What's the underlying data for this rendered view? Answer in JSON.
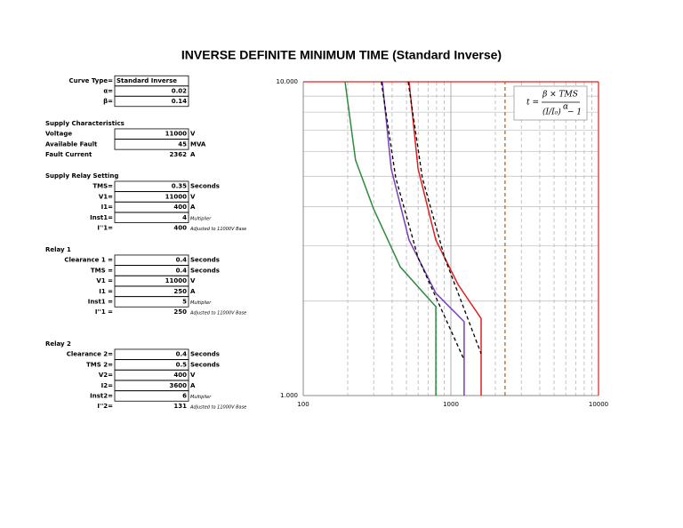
{
  "document": {
    "title": "INVERSE DEFINITE MINIMUM TIME (Standard Inverse)",
    "parameters": {
      "rows": [
        {
          "label": "Curve Type=",
          "value": "Standard Inverse"
        },
        {
          "label": "α=",
          "value": "0.02"
        },
        {
          "label": "β=",
          "value": "0.14"
        }
      ]
    },
    "sections": [
      {
        "heading": "Supply Characteristics",
        "rows": [
          {
            "label": "Voltage",
            "value": "11000",
            "unit": "V"
          },
          {
            "label": "Available Fault",
            "value": "45",
            "unit": "MVA"
          },
          {
            "label": "Fault Current",
            "value": "2362",
            "unit": "A"
          }
        ]
      },
      {
        "heading": "Supply Relay Setting",
        "rows": [
          {
            "label": "TMS=",
            "value": "0.35",
            "unit": "Seconds"
          },
          {
            "label": "V1=",
            "value": "11000",
            "unit": "V"
          },
          {
            "label": "I1=",
            "value": "400",
            "unit": "A"
          },
          {
            "label": "Inst1=",
            "value": "4",
            "note": "Multiplier"
          },
          {
            "label": "I''1=",
            "value": "400",
            "note": "Adjusted to 11000V Base"
          }
        ]
      },
      {
        "heading": "Relay 1",
        "rows": [
          {
            "label": "Clearance 1 =",
            "value": "0.4",
            "unit": "Seconds"
          },
          {
            "label": "TMS =",
            "value": "0.4",
            "unit": "Seconds"
          },
          {
            "label": "V1 =",
            "value": "11000",
            "unit": "V"
          },
          {
            "label": "I1 =",
            "value": "250",
            "unit": "A"
          },
          {
            "label": "Inst1 =",
            "value": "5",
            "note": "Multiplier"
          },
          {
            "label": "I''1 =",
            "value": "250",
            "note": "Adjusted to 11000V Base"
          }
        ]
      },
      {
        "heading": "Relay 2",
        "rows": [
          {
            "label": "Clearance 2=",
            "value": "0.4",
            "unit": "Seconds"
          },
          {
            "label": "TMS 2=",
            "value": "0.5",
            "unit": "Seconds"
          },
          {
            "label": "V2=",
            "value": "400",
            "unit": "V"
          },
          {
            "label": "I2=",
            "value": "3600",
            "unit": "A"
          },
          {
            "label": "Inst2=",
            "value": "6",
            "note": "Multiplier"
          },
          {
            "label": "I''2=",
            "value": "131",
            "note": "Adjusted to 11000V Base"
          }
        ]
      }
    ]
  },
  "chart_data": {
    "type": "line",
    "xlog": true,
    "ylog": true,
    "xlim": [
      100,
      10000
    ],
    "ylim": [
      1,
      10
    ],
    "xticks": [
      100,
      1000,
      10000
    ],
    "yticks": [
      {
        "value": 10,
        "label": "10.000"
      },
      {
        "value": 1,
        "label": "1.000"
      }
    ],
    "grid": true,
    "minor_grid": true,
    "formula": {
      "lhs": "t =",
      "numerator": "β × TMS",
      "base": "(I/I₀)",
      "exponent": "α",
      "tail": "− 1"
    },
    "series": [
      {
        "color": "#2e8b3e",
        "x": [
          192,
          226,
          299,
          454,
          791,
          791
        ],
        "values": [
          10,
          5.63,
          3.94,
          2.57,
          1.92,
          1
        ]
      },
      {
        "color": "#7a3fb5",
        "x": [
          343,
          394,
          521,
          791,
          1230,
          1230
        ],
        "values": [
          10,
          5.28,
          3.13,
          2.12,
          1.72,
          1
        ]
      },
      {
        "color": "#e02020",
        "x": [
          521,
          599,
          791,
          1117,
          1603,
          1603
        ],
        "values": [
          10,
          5.28,
          3.13,
          2.26,
          1.76,
          1
        ]
      },
      {
        "color": "#000000",
        "dash": true,
        "x": [
          338,
          423,
          599,
          1230
        ],
        "values": [
          10,
          4.94,
          2.75,
          1.3
        ]
      },
      {
        "color": "#000000",
        "dash": true,
        "x": [
          514,
          641,
          908,
          1603
        ],
        "values": [
          10,
          4.94,
          2.75,
          1.36
        ]
      },
      {
        "color": "#b8651e",
        "dash": true,
        "x": [
          2328,
          2328
        ],
        "values": [
          1,
          10
        ]
      }
    ]
  }
}
